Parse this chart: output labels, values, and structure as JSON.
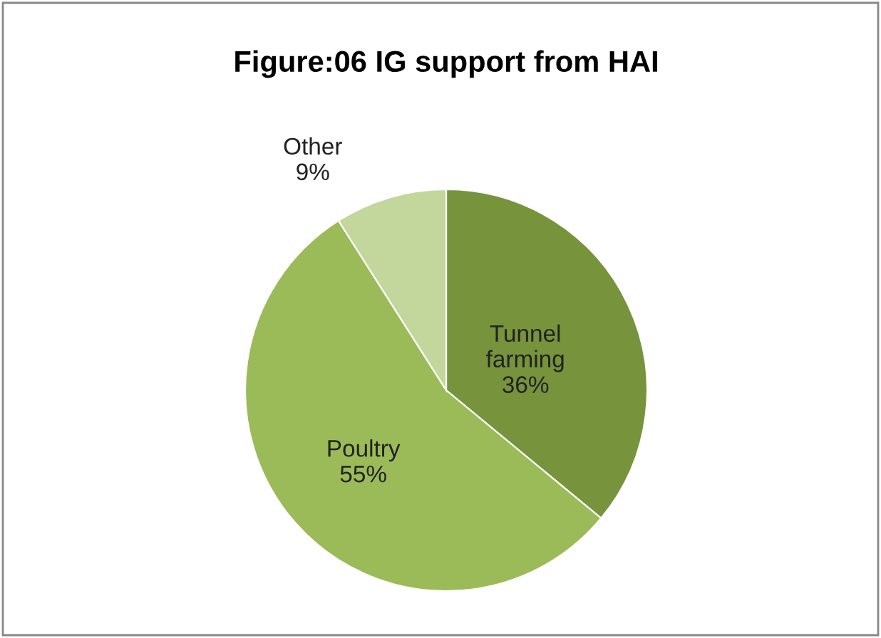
{
  "chart_data": {
    "type": "pie",
    "title": "Figure:06 IG support from HAI",
    "categories": [
      "Tunnel farming",
      "Poultry",
      "Other"
    ],
    "values": [
      36,
      55,
      9
    ],
    "value_labels": [
      "36%",
      "55%",
      "9%"
    ],
    "colors": [
      "#77933c",
      "#9bbb59",
      "#c3d69b"
    ],
    "legend": false
  }
}
